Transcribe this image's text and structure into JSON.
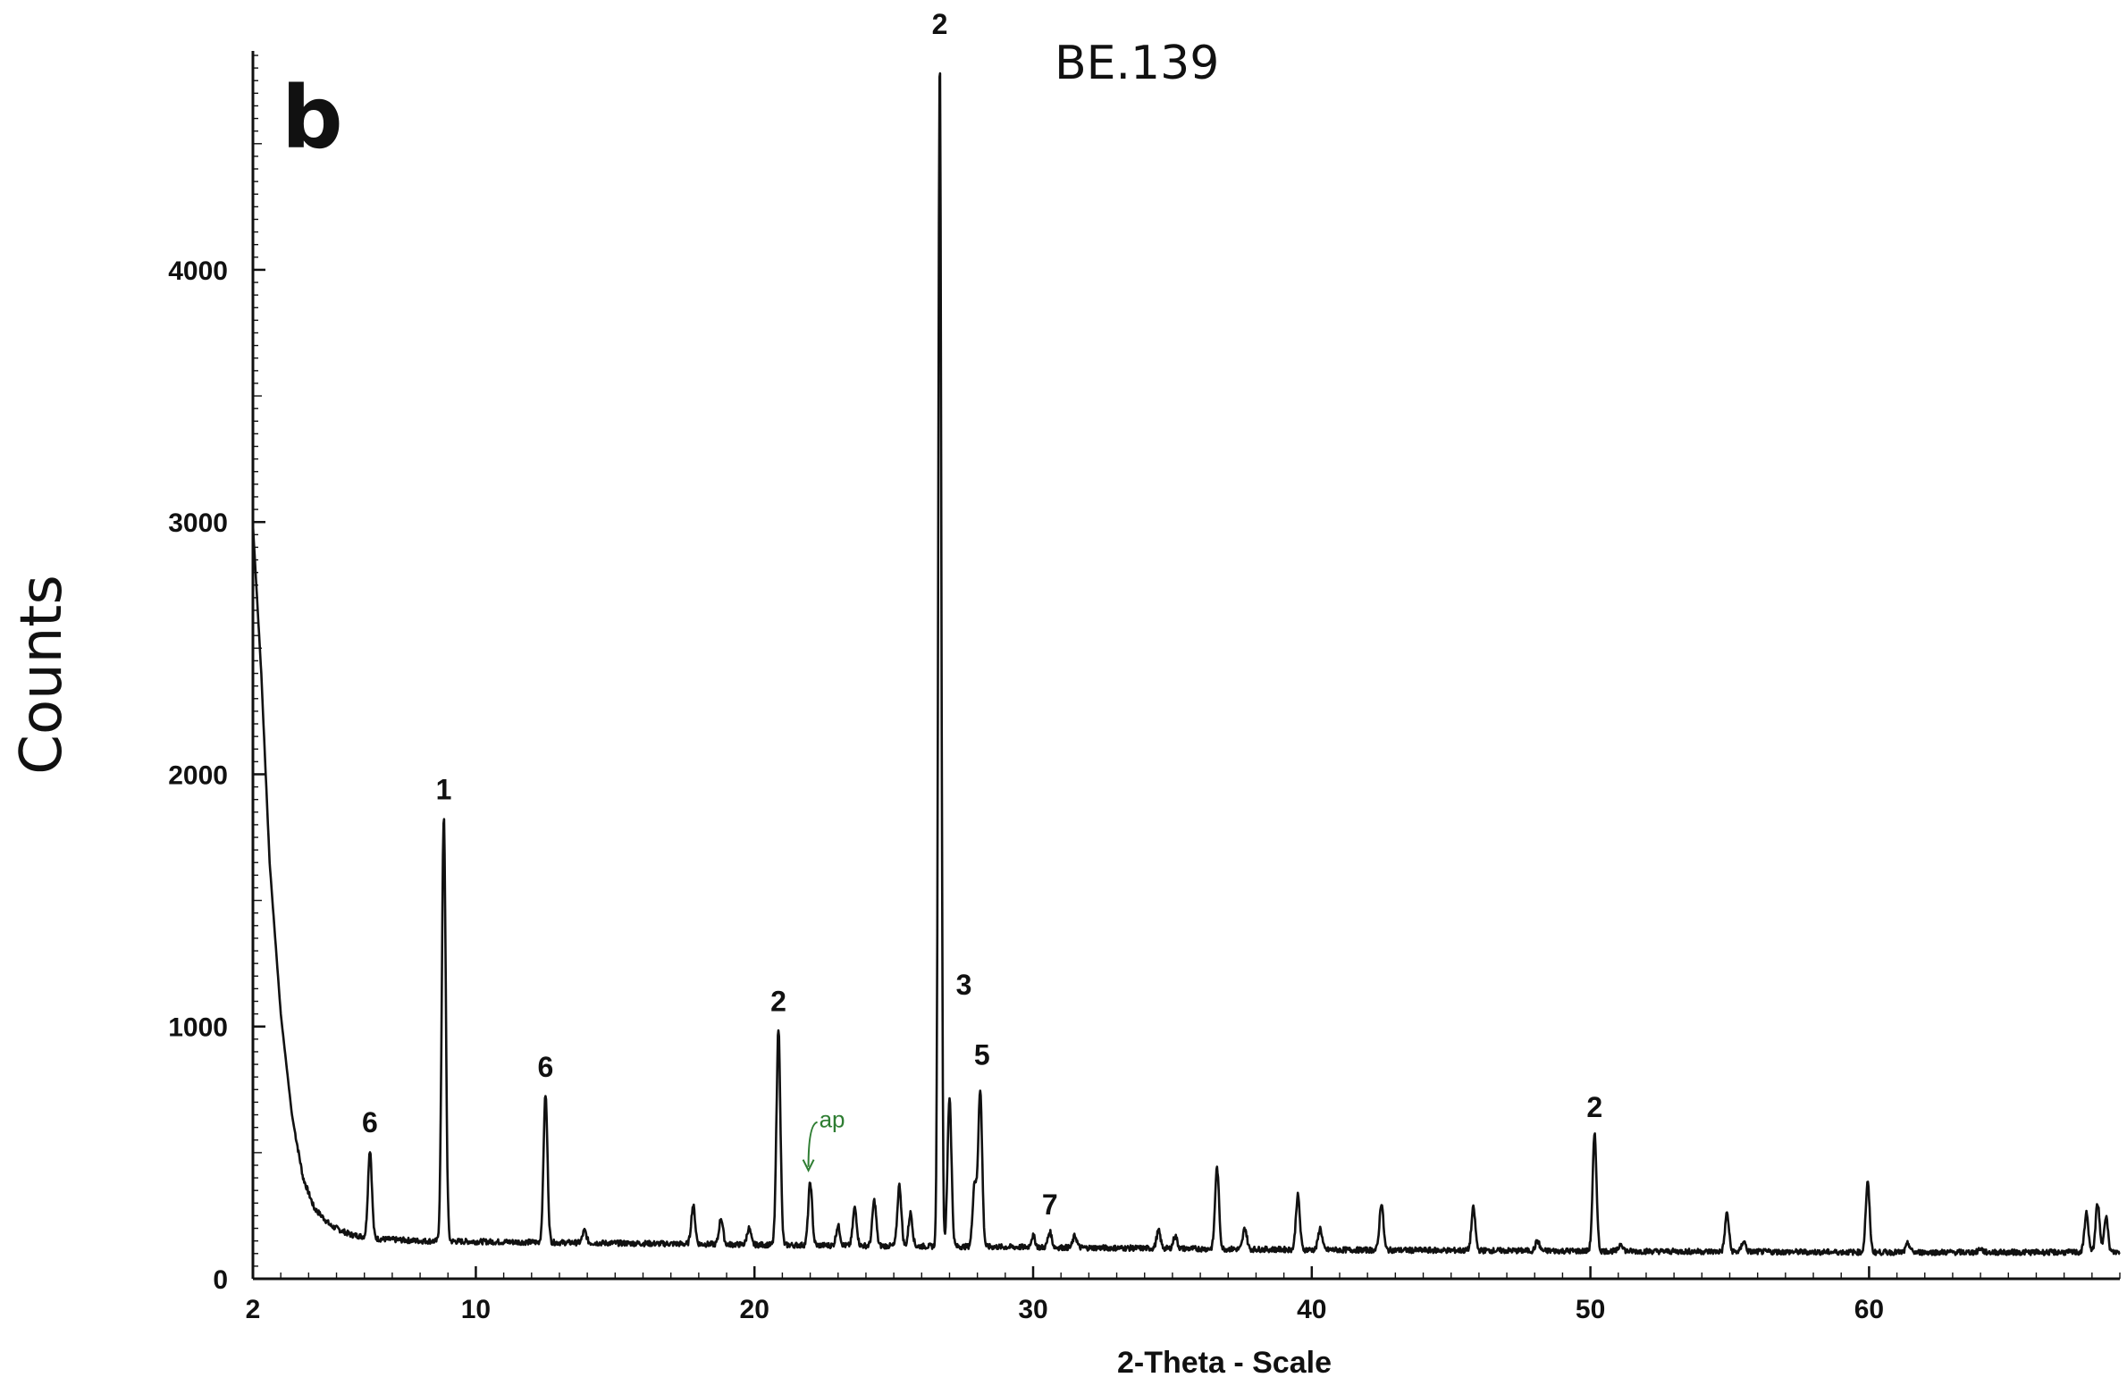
{
  "panel_label": "b",
  "sample_id": "BE.139",
  "chart_data": {
    "type": "line",
    "xlabel": "2-Theta - Scale",
    "ylabel": "Counts",
    "xlim": [
      2,
      69
    ],
    "ylim": [
      0,
      4850
    ],
    "x_ticks": [
      2,
      10,
      20,
      30,
      40,
      50,
      60
    ],
    "y_ticks": [
      0,
      1000,
      2000,
      3000,
      4000
    ],
    "background": [
      [
        2.0,
        2990
      ],
      [
        2.3,
        2400
      ],
      [
        2.6,
        1650
      ],
      [
        3.0,
        1050
      ],
      [
        3.4,
        650
      ],
      [
        3.8,
        400
      ],
      [
        4.2,
        280
      ],
      [
        4.8,
        210
      ],
      [
        5.5,
        175
      ],
      [
        6.5,
        158
      ],
      [
        8,
        150
      ],
      [
        12,
        145
      ],
      [
        20,
        135
      ],
      [
        30,
        125
      ],
      [
        40,
        115
      ],
      [
        50,
        110
      ],
      [
        60,
        105
      ],
      [
        69,
        105
      ]
    ],
    "peaks": [
      {
        "x": 6.2,
        "y": 510,
        "label": "6"
      },
      {
        "x": 8.85,
        "y": 1830,
        "label": "1"
      },
      {
        "x": 12.5,
        "y": 730,
        "label": "6"
      },
      {
        "x": 13.9,
        "y": 190
      },
      {
        "x": 17.8,
        "y": 290
      },
      {
        "x": 18.8,
        "y": 240
      },
      {
        "x": 19.8,
        "y": 200
      },
      {
        "x": 20.86,
        "y": 990,
        "label": "2"
      },
      {
        "x": 22.0,
        "y": 380,
        "label": "ap",
        "label_color": "#2e7d32"
      },
      {
        "x": 23.0,
        "y": 210
      },
      {
        "x": 23.6,
        "y": 280
      },
      {
        "x": 24.3,
        "y": 310
      },
      {
        "x": 25.2,
        "y": 370
      },
      {
        "x": 25.6,
        "y": 260
      },
      {
        "x": 26.65,
        "y": 4850,
        "label": "2"
      },
      {
        "x": 27.0,
        "y": 720,
        "label": "3"
      },
      {
        "x": 27.9,
        "y": 380
      },
      {
        "x": 28.1,
        "y": 750,
        "label": "5"
      },
      {
        "x": 30.0,
        "y": 170
      },
      {
        "x": 30.6,
        "y": 185,
        "label": "7"
      },
      {
        "x": 31.5,
        "y": 170
      },
      {
        "x": 34.5,
        "y": 190
      },
      {
        "x": 35.1,
        "y": 170
      },
      {
        "x": 36.6,
        "y": 440
      },
      {
        "x": 37.6,
        "y": 200
      },
      {
        "x": 39.5,
        "y": 330
      },
      {
        "x": 40.3,
        "y": 200
      },
      {
        "x": 42.5,
        "y": 300
      },
      {
        "x": 45.8,
        "y": 280
      },
      {
        "x": 48.1,
        "y": 150
      },
      {
        "x": 50.15,
        "y": 570,
        "label": "2"
      },
      {
        "x": 51.1,
        "y": 140
      },
      {
        "x": 54.9,
        "y": 260
      },
      {
        "x": 55.5,
        "y": 150
      },
      {
        "x": 59.95,
        "y": 380
      },
      {
        "x": 61.4,
        "y": 140
      },
      {
        "x": 64.0,
        "y": 120
      },
      {
        "x": 67.8,
        "y": 260
      },
      {
        "x": 68.2,
        "y": 300
      },
      {
        "x": 68.5,
        "y": 250
      }
    ]
  }
}
